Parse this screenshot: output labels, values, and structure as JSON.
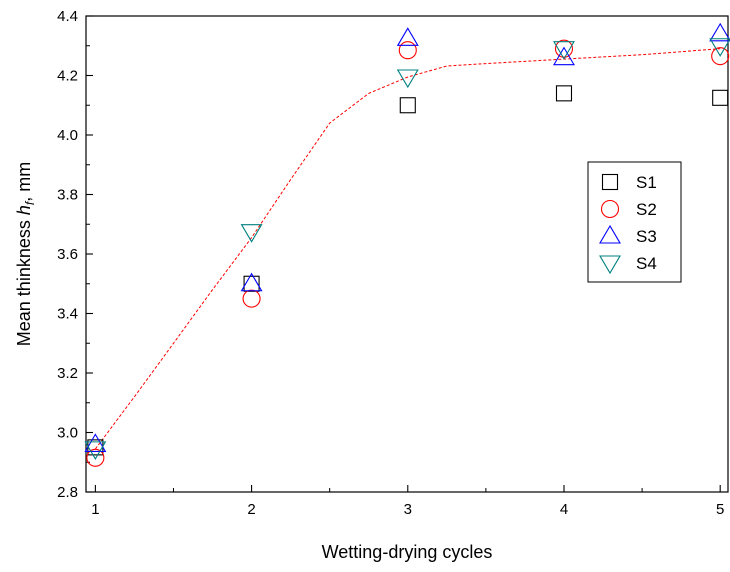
{
  "chart_data": {
    "type": "scatter",
    "xlabel": "Wetting-drying cycles",
    "ylabel": {
      "prefix": "Mean thinkness ",
      "var": "h",
      "sub": "f",
      "suffix": ", mm"
    },
    "xlim": [
      0.94,
      5.05
    ],
    "ylim": [
      2.8,
      4.4
    ],
    "xticks": [
      1,
      2,
      3,
      4,
      5
    ],
    "yticks": [
      2.8,
      3.0,
      3.2,
      3.4,
      3.6,
      3.8,
      4.0,
      4.2,
      4.4
    ],
    "yminor": [
      2.9,
      3.1,
      3.3,
      3.5,
      3.7,
      3.9,
      4.1,
      4.3
    ],
    "xminor": [
      1.5,
      2.5,
      3.5,
      4.5
    ],
    "grid": false,
    "legend_position": "right-middle",
    "series": [
      {
        "name": "S1",
        "marker": "square",
        "color": "#000000",
        "x": [
          1,
          2,
          3,
          4,
          5
        ],
        "y": [
          2.95,
          3.5,
          4.1,
          4.14,
          4.125
        ]
      },
      {
        "name": "S2",
        "marker": "circle",
        "color": "#ff0000",
        "x": [
          1,
          2,
          3,
          4,
          5
        ],
        "y": [
          2.915,
          3.45,
          4.285,
          4.29,
          4.265
        ]
      },
      {
        "name": "S3",
        "marker": "triangle-up",
        "color": "#0000ff",
        "x": [
          1,
          2,
          3,
          4,
          5
        ],
        "y": [
          2.96,
          3.5,
          4.325,
          4.26,
          4.34
        ]
      },
      {
        "name": "S4",
        "marker": "triangle-down",
        "color": "#008080",
        "x": [
          1,
          2,
          3,
          4,
          5
        ],
        "y": [
          2.945,
          3.675,
          4.195,
          4.29,
          4.3
        ]
      }
    ],
    "trend_line": {
      "color": "#ff0000",
      "style": "dashed",
      "x": [
        1,
        1.25,
        1.5,
        1.75,
        2,
        2.25,
        2.5,
        2.75,
        3,
        3.25,
        3.5,
        4,
        4.5,
        5
      ],
      "y": [
        2.945,
        3.12,
        3.3,
        3.48,
        3.655,
        3.85,
        4.04,
        4.14,
        4.195,
        4.232,
        4.24,
        4.255,
        4.27,
        4.29
      ]
    }
  }
}
